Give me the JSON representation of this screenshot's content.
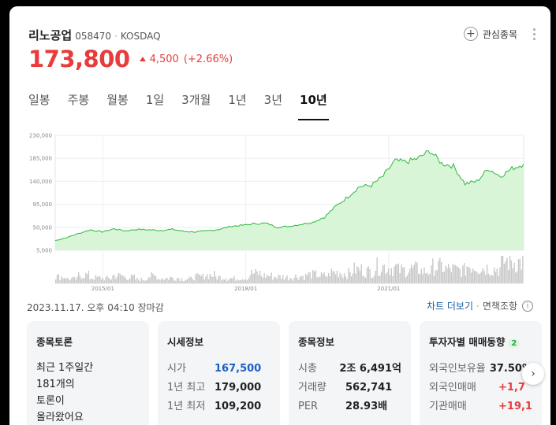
{
  "stock": {
    "name": "리노공업",
    "code": "058470",
    "market": "KOSDAQ",
    "price": "173,800",
    "change": "4,500",
    "change_pct": "(+2.66%)"
  },
  "favorite_label": "관심종목",
  "tabs": [
    "일봉",
    "주봉",
    "월봉",
    "1일",
    "3개월",
    "1년",
    "3년",
    "10년"
  ],
  "active_tab": "10년",
  "timestamp": "2023.11.17. 오후 04:10 장마감",
  "links": {
    "chart_more": "차트 더보기",
    "sep": "·",
    "disclaimer": "면책조항"
  },
  "chart_data": {
    "type": "area",
    "title": "",
    "ylabel": "",
    "y_ticks": [
      "230,000",
      "185,000",
      "140,000",
      "95,000",
      "50,000",
      "5,000"
    ],
    "y_tick_values": [
      230000,
      185000,
      140000,
      95000,
      50000,
      5000
    ],
    "x_ticks": [
      "2015/01",
      "2018/01",
      "2021/01"
    ],
    "x_tick_index": [
      12,
      48,
      84
    ],
    "ylim": [
      5000,
      230000
    ],
    "line_color": "#2db83d",
    "fill_color": "#d8f5d7",
    "grid": true,
    "x": [
      "2014/01",
      "2014/04",
      "2014/07",
      "2014/10",
      "2015/01",
      "2015/04",
      "2015/07",
      "2015/10",
      "2016/01",
      "2016/04",
      "2016/07",
      "2016/10",
      "2017/01",
      "2017/04",
      "2017/07",
      "2017/10",
      "2018/01",
      "2018/04",
      "2018/07",
      "2018/10",
      "2019/01",
      "2019/04",
      "2019/07",
      "2019/10",
      "2020/01",
      "2020/04",
      "2020/07",
      "2020/10",
      "2021/01",
      "2021/04",
      "2021/07",
      "2021/10",
      "2022/01",
      "2022/04",
      "2022/07",
      "2022/10",
      "2023/01",
      "2023/04",
      "2023/07",
      "2023/10",
      "2023/11"
    ],
    "values": [
      24000,
      30000,
      38000,
      45000,
      41000,
      47000,
      43000,
      46000,
      45000,
      44000,
      46000,
      42000,
      41000,
      43000,
      46000,
      52000,
      54000,
      57000,
      58000,
      50000,
      52000,
      56000,
      60000,
      70000,
      92000,
      110000,
      130000,
      132000,
      150000,
      180000,
      178000,
      185000,
      200000,
      175000,
      170000,
      135000,
      140000,
      165000,
      150000,
      165000,
      173800
    ],
    "volume": [
      12,
      8,
      15,
      10,
      9,
      14,
      11,
      7,
      13,
      9,
      10,
      8,
      12,
      15,
      11,
      9,
      10,
      18,
      14,
      12,
      11,
      13,
      16,
      14,
      20,
      18,
      25,
      22,
      30,
      28,
      24,
      26,
      22,
      30,
      26,
      24,
      32,
      28,
      26,
      40,
      38
    ]
  },
  "cards": {
    "discussion": {
      "title": "종목토론",
      "body": [
        "최근 1주일간",
        "181개의",
        "토론이",
        "올라왔어요"
      ]
    },
    "market_info": {
      "title": "시세정보",
      "rows": [
        {
          "k": "시가",
          "v": "167,500"
        },
        {
          "k": "1년 최고",
          "v": "179,000"
        },
        {
          "k": "1년 최저",
          "v": "109,200"
        }
      ]
    },
    "stock_info": {
      "title": "종목정보",
      "rows": [
        {
          "k": "시총",
          "v": "2조 6,491억"
        },
        {
          "k": "거래량",
          "v": "562,741"
        },
        {
          "k": "PER",
          "v": "28.93배"
        }
      ]
    },
    "investor": {
      "title": "투자자별 매매동향",
      "badge": "2",
      "rows": [
        {
          "k": "외국인보유율",
          "v": "37.50%"
        },
        {
          "k": "외국인매매",
          "v": "+1,7"
        },
        {
          "k": "기관매매",
          "v": "+19,1"
        }
      ]
    }
  }
}
